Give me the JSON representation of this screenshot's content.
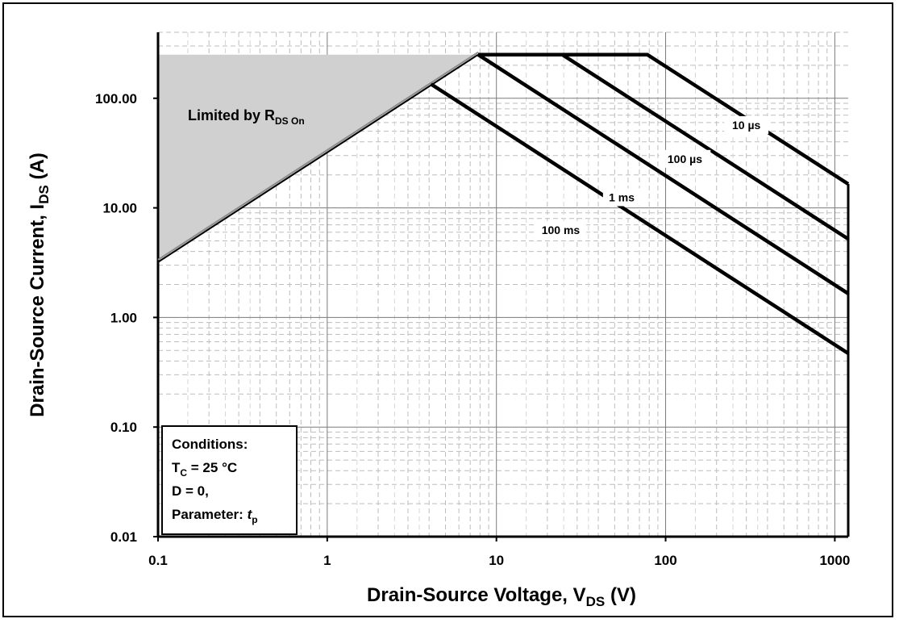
{
  "chart_data": {
    "type": "line",
    "title": "",
    "xlabel": {
      "main": "Drain-Source Voltage, V",
      "sub": "DS",
      "unit": " (V)"
    },
    "ylabel": {
      "main": "Drain-Source Current, I",
      "sub": "DS",
      "unit": " (A)"
    },
    "x_scale": "log",
    "y_scale": "log",
    "xlim": [
      0.1,
      1200
    ],
    "ylim": [
      0.01,
      400
    ],
    "grid": true,
    "x_ticks": [
      {
        "value": 0.1,
        "label": "0.1"
      },
      {
        "value": 1,
        "label": "1"
      },
      {
        "value": 10,
        "label": "10"
      },
      {
        "value": 100,
        "label": "100"
      },
      {
        "value": 1000,
        "label": "1000"
      }
    ],
    "y_ticks": [
      {
        "value": 0.01,
        "label": "0.01"
      },
      {
        "value": 0.1,
        "label": "0.10"
      },
      {
        "value": 1,
        "label": "1.00"
      },
      {
        "value": 10,
        "label": "10.00"
      },
      {
        "value": 100,
        "label": "100.00"
      }
    ],
    "limited_region": {
      "label_main": "Limited by R",
      "label_sub": "DS On",
      "points": [
        [
          0.1,
          3.2
        ],
        [
          7.8,
          250
        ]
      ],
      "top_current": 250,
      "fill": "#d0d0d0"
    },
    "series": [
      {
        "name": "10 µs",
        "points": [
          [
            7.8,
            250
          ],
          [
            78,
            250
          ],
          [
            1200,
            16.5
          ]
        ],
        "label_at": [
          300,
          57
        ]
      },
      {
        "name": "100 µs",
        "points": [
          [
            7.8,
            250
          ],
          [
            24.5,
            250
          ],
          [
            1200,
            5.2
          ]
        ],
        "label_at": [
          130,
          28
        ]
      },
      {
        "name": "1 ms",
        "points": [
          [
            7.8,
            250
          ],
          [
            1200,
            1.65
          ]
        ],
        "label_at": [
          55,
          12.5
        ]
      },
      {
        "name": "100 ms",
        "points": [
          [
            4.1,
            135
          ],
          [
            1200,
            0.47
          ]
        ],
        "label_at": [
          24,
          6.3
        ]
      }
    ],
    "conditions": {
      "title": "Conditions:",
      "tc_main": "T",
      "tc_sub": "C",
      "tc_rest": " = 25 °C",
      "duty": "D = 0,",
      "param_main": "Parameter: ",
      "param_t": "t",
      "param_sub": "p"
    }
  }
}
